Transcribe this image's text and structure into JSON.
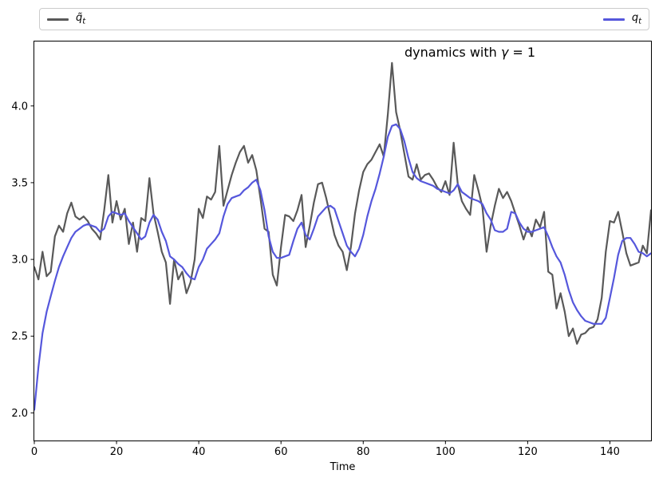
{
  "figure": {
    "background": "#ffffff"
  },
  "annotation": {
    "prefix": "dynamics with ",
    "symbol": "γ",
    "suffix": " = 1"
  },
  "legend": {
    "entries": [
      {
        "base": "q̃",
        "sub": "t",
        "color": "#595959"
      },
      {
        "base": "q",
        "sub": "t",
        "color": "#5557dc"
      }
    ]
  },
  "chart_data": {
    "type": "line",
    "title": "dynamics with γ = 1",
    "xlabel": "Time",
    "ylabel": "",
    "xlim": [
      0,
      150
    ],
    "ylim": [
      1.82,
      4.42
    ],
    "x_ticks": [
      0,
      20,
      40,
      60,
      80,
      100,
      120,
      140
    ],
    "y_ticks": [
      2.0,
      2.5,
      3.0,
      3.5,
      4.0
    ],
    "grid": false,
    "legend_position": "top-expanded-two-columns",
    "series": [
      {
        "name": "q̃_t",
        "color": "#595959",
        "line_width": 2.2,
        "x_start": 0,
        "x_step": 1,
        "values": [
          2.95,
          2.87,
          3.05,
          2.89,
          2.92,
          3.15,
          3.22,
          3.18,
          3.3,
          3.37,
          3.28,
          3.26,
          3.28,
          3.25,
          3.2,
          3.17,
          3.13,
          3.32,
          3.55,
          3.24,
          3.38,
          3.26,
          3.33,
          3.1,
          3.24,
          3.05,
          3.27,
          3.25,
          3.53,
          3.3,
          3.18,
          3.05,
          2.98,
          2.71,
          3.0,
          2.87,
          2.92,
          2.78,
          2.85,
          3.0,
          3.33,
          3.27,
          3.41,
          3.39,
          3.44,
          3.74,
          3.35,
          3.45,
          3.55,
          3.63,
          3.7,
          3.74,
          3.63,
          3.68,
          3.58,
          3.4,
          3.2,
          3.18,
          2.9,
          2.83,
          3.08,
          3.29,
          3.28,
          3.25,
          3.32,
          3.42,
          3.08,
          3.22,
          3.37,
          3.49,
          3.5,
          3.4,
          3.28,
          3.16,
          3.09,
          3.05,
          2.93,
          3.08,
          3.3,
          3.45,
          3.57,
          3.62,
          3.65,
          3.7,
          3.75,
          3.67,
          3.95,
          4.28,
          3.96,
          3.84,
          3.69,
          3.54,
          3.52,
          3.62,
          3.52,
          3.55,
          3.56,
          3.52,
          3.47,
          3.44,
          3.51,
          3.42,
          3.76,
          3.49,
          3.38,
          3.33,
          3.29,
          3.55,
          3.45,
          3.34,
          3.05,
          3.22,
          3.35,
          3.46,
          3.4,
          3.44,
          3.38,
          3.3,
          3.22,
          3.13,
          3.21,
          3.15,
          3.26,
          3.21,
          3.31,
          2.92,
          2.9,
          2.68,
          2.78,
          2.66,
          2.5,
          2.55,
          2.45,
          2.51,
          2.52,
          2.55,
          2.56,
          2.61,
          2.75,
          3.05,
          3.25,
          3.24,
          3.31,
          3.18,
          3.04,
          2.96,
          2.97,
          2.98,
          3.09,
          3.04,
          3.32
        ]
      },
      {
        "name": "q_t",
        "color": "#5557dc",
        "line_width": 2.2,
        "x_start": 0,
        "x_step": 1,
        "values": [
          2.02,
          2.3,
          2.52,
          2.66,
          2.76,
          2.86,
          2.95,
          3.02,
          3.08,
          3.14,
          3.18,
          3.2,
          3.22,
          3.23,
          3.22,
          3.21,
          3.18,
          3.2,
          3.28,
          3.31,
          3.3,
          3.29,
          3.3,
          3.25,
          3.21,
          3.17,
          3.13,
          3.15,
          3.24,
          3.29,
          3.26,
          3.18,
          3.12,
          3.02,
          3.0,
          2.97,
          2.95,
          2.91,
          2.88,
          2.87,
          2.95,
          3.0,
          3.07,
          3.1,
          3.13,
          3.17,
          3.28,
          3.36,
          3.4,
          3.41,
          3.42,
          3.45,
          3.47,
          3.5,
          3.52,
          3.45,
          3.32,
          3.15,
          3.05,
          3.01,
          3.01,
          3.02,
          3.03,
          3.12,
          3.2,
          3.24,
          3.16,
          3.13,
          3.2,
          3.28,
          3.31,
          3.34,
          3.35,
          3.33,
          3.25,
          3.17,
          3.09,
          3.05,
          3.02,
          3.07,
          3.16,
          3.28,
          3.38,
          3.46,
          3.56,
          3.67,
          3.8,
          3.87,
          3.88,
          3.85,
          3.77,
          3.66,
          3.57,
          3.53,
          3.51,
          3.5,
          3.49,
          3.48,
          3.46,
          3.45,
          3.44,
          3.43,
          3.45,
          3.49,
          3.44,
          3.42,
          3.4,
          3.39,
          3.38,
          3.36,
          3.3,
          3.26,
          3.19,
          3.18,
          3.18,
          3.2,
          3.31,
          3.3,
          3.24,
          3.2,
          3.18,
          3.18,
          3.19,
          3.2,
          3.21,
          3.15,
          3.08,
          3.02,
          2.98,
          2.9,
          2.8,
          2.72,
          2.67,
          2.63,
          2.6,
          2.59,
          2.58,
          2.58,
          2.58,
          2.62,
          2.75,
          2.88,
          3.03,
          3.12,
          3.14,
          3.14,
          3.1,
          3.05,
          3.04,
          3.02,
          3.04
        ]
      }
    ]
  }
}
